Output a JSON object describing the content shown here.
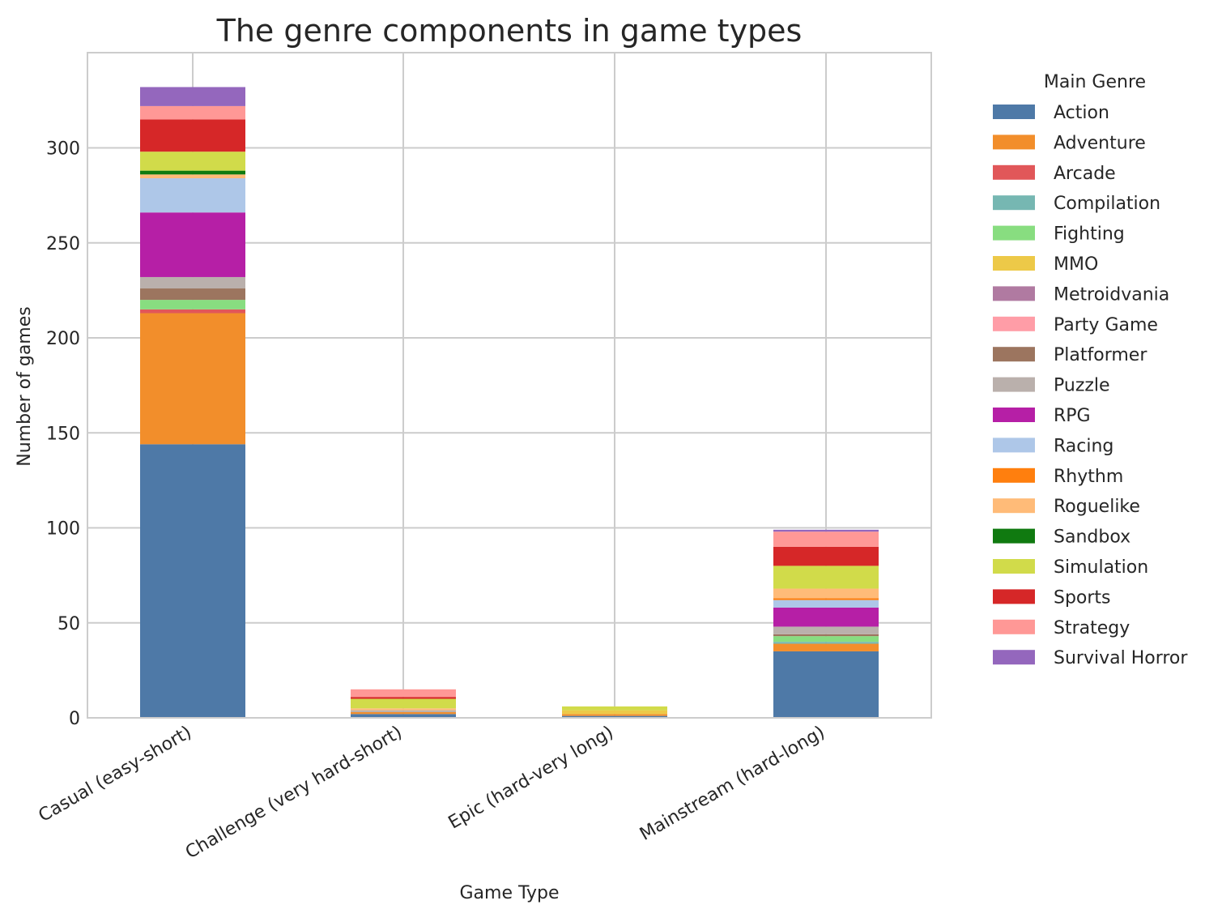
{
  "chart_data": {
    "type": "bar",
    "stacked": true,
    "title": "The genre components in game types",
    "xlabel": "Game Type",
    "ylabel": "Number of games",
    "ylim": [
      0,
      350
    ],
    "yticks": [
      0,
      50,
      100,
      150,
      200,
      250,
      300
    ],
    "grid": true,
    "legend_title": "Main Genre",
    "legend_position": "outside-right",
    "categories": [
      "Casual (easy-short)",
      "Challenge (very hard-short)",
      "Epic (hard-very long)",
      "Mainstream (hard-long)"
    ],
    "series": [
      {
        "name": "Action",
        "color": "#4e79a7",
        "values": [
          144,
          2,
          1,
          35
        ]
      },
      {
        "name": "Adventure",
        "color": "#f28e2b",
        "values": [
          69,
          1,
          1,
          4
        ]
      },
      {
        "name": "Arcade",
        "color": "#e15759",
        "values": [
          2,
          0,
          0,
          0
        ]
      },
      {
        "name": "Compilation",
        "color": "#76b7b2",
        "values": [
          0,
          0,
          0,
          1
        ]
      },
      {
        "name": "Fighting",
        "color": "#88dd80",
        "values": [
          5,
          0,
          0,
          3
        ]
      },
      {
        "name": "MMO",
        "color": "#edc948",
        "values": [
          0,
          0,
          2,
          0
        ]
      },
      {
        "name": "Metroidvania",
        "color": "#b07aa1",
        "values": [
          0,
          0,
          0,
          0
        ]
      },
      {
        "name": "Party Game",
        "color": "#ff9da7",
        "values": [
          0,
          0,
          0,
          0
        ]
      },
      {
        "name": "Platformer",
        "color": "#9c755f",
        "values": [
          6,
          0,
          0,
          1
        ]
      },
      {
        "name": "Puzzle",
        "color": "#bab0ac",
        "values": [
          6,
          1,
          0,
          4
        ]
      },
      {
        "name": "RPG",
        "color": "#b61fa6",
        "values": [
          34,
          0,
          0,
          10
        ]
      },
      {
        "name": "Racing",
        "color": "#aec7e8",
        "values": [
          18,
          0,
          0,
          4
        ]
      },
      {
        "name": "Rhythm",
        "color": "#ff7f0e",
        "values": [
          0,
          0,
          0,
          1
        ]
      },
      {
        "name": "Roguelike",
        "color": "#ffbb78",
        "values": [
          2,
          1,
          0,
          5
        ]
      },
      {
        "name": "Sandbox",
        "color": "#107a10",
        "values": [
          2,
          0,
          0,
          0
        ]
      },
      {
        "name": "Simulation",
        "color": "#d1db4a",
        "values": [
          10,
          5,
          2,
          12
        ]
      },
      {
        "name": "Sports",
        "color": "#d62728",
        "values": [
          17,
          1,
          0,
          10
        ]
      },
      {
        "name": "Strategy",
        "color": "#ff9896",
        "values": [
          7,
          4,
          0,
          8
        ]
      },
      {
        "name": "Survival Horror",
        "color": "#9467bd",
        "values": [
          10,
          0,
          0,
          1
        ]
      }
    ]
  }
}
